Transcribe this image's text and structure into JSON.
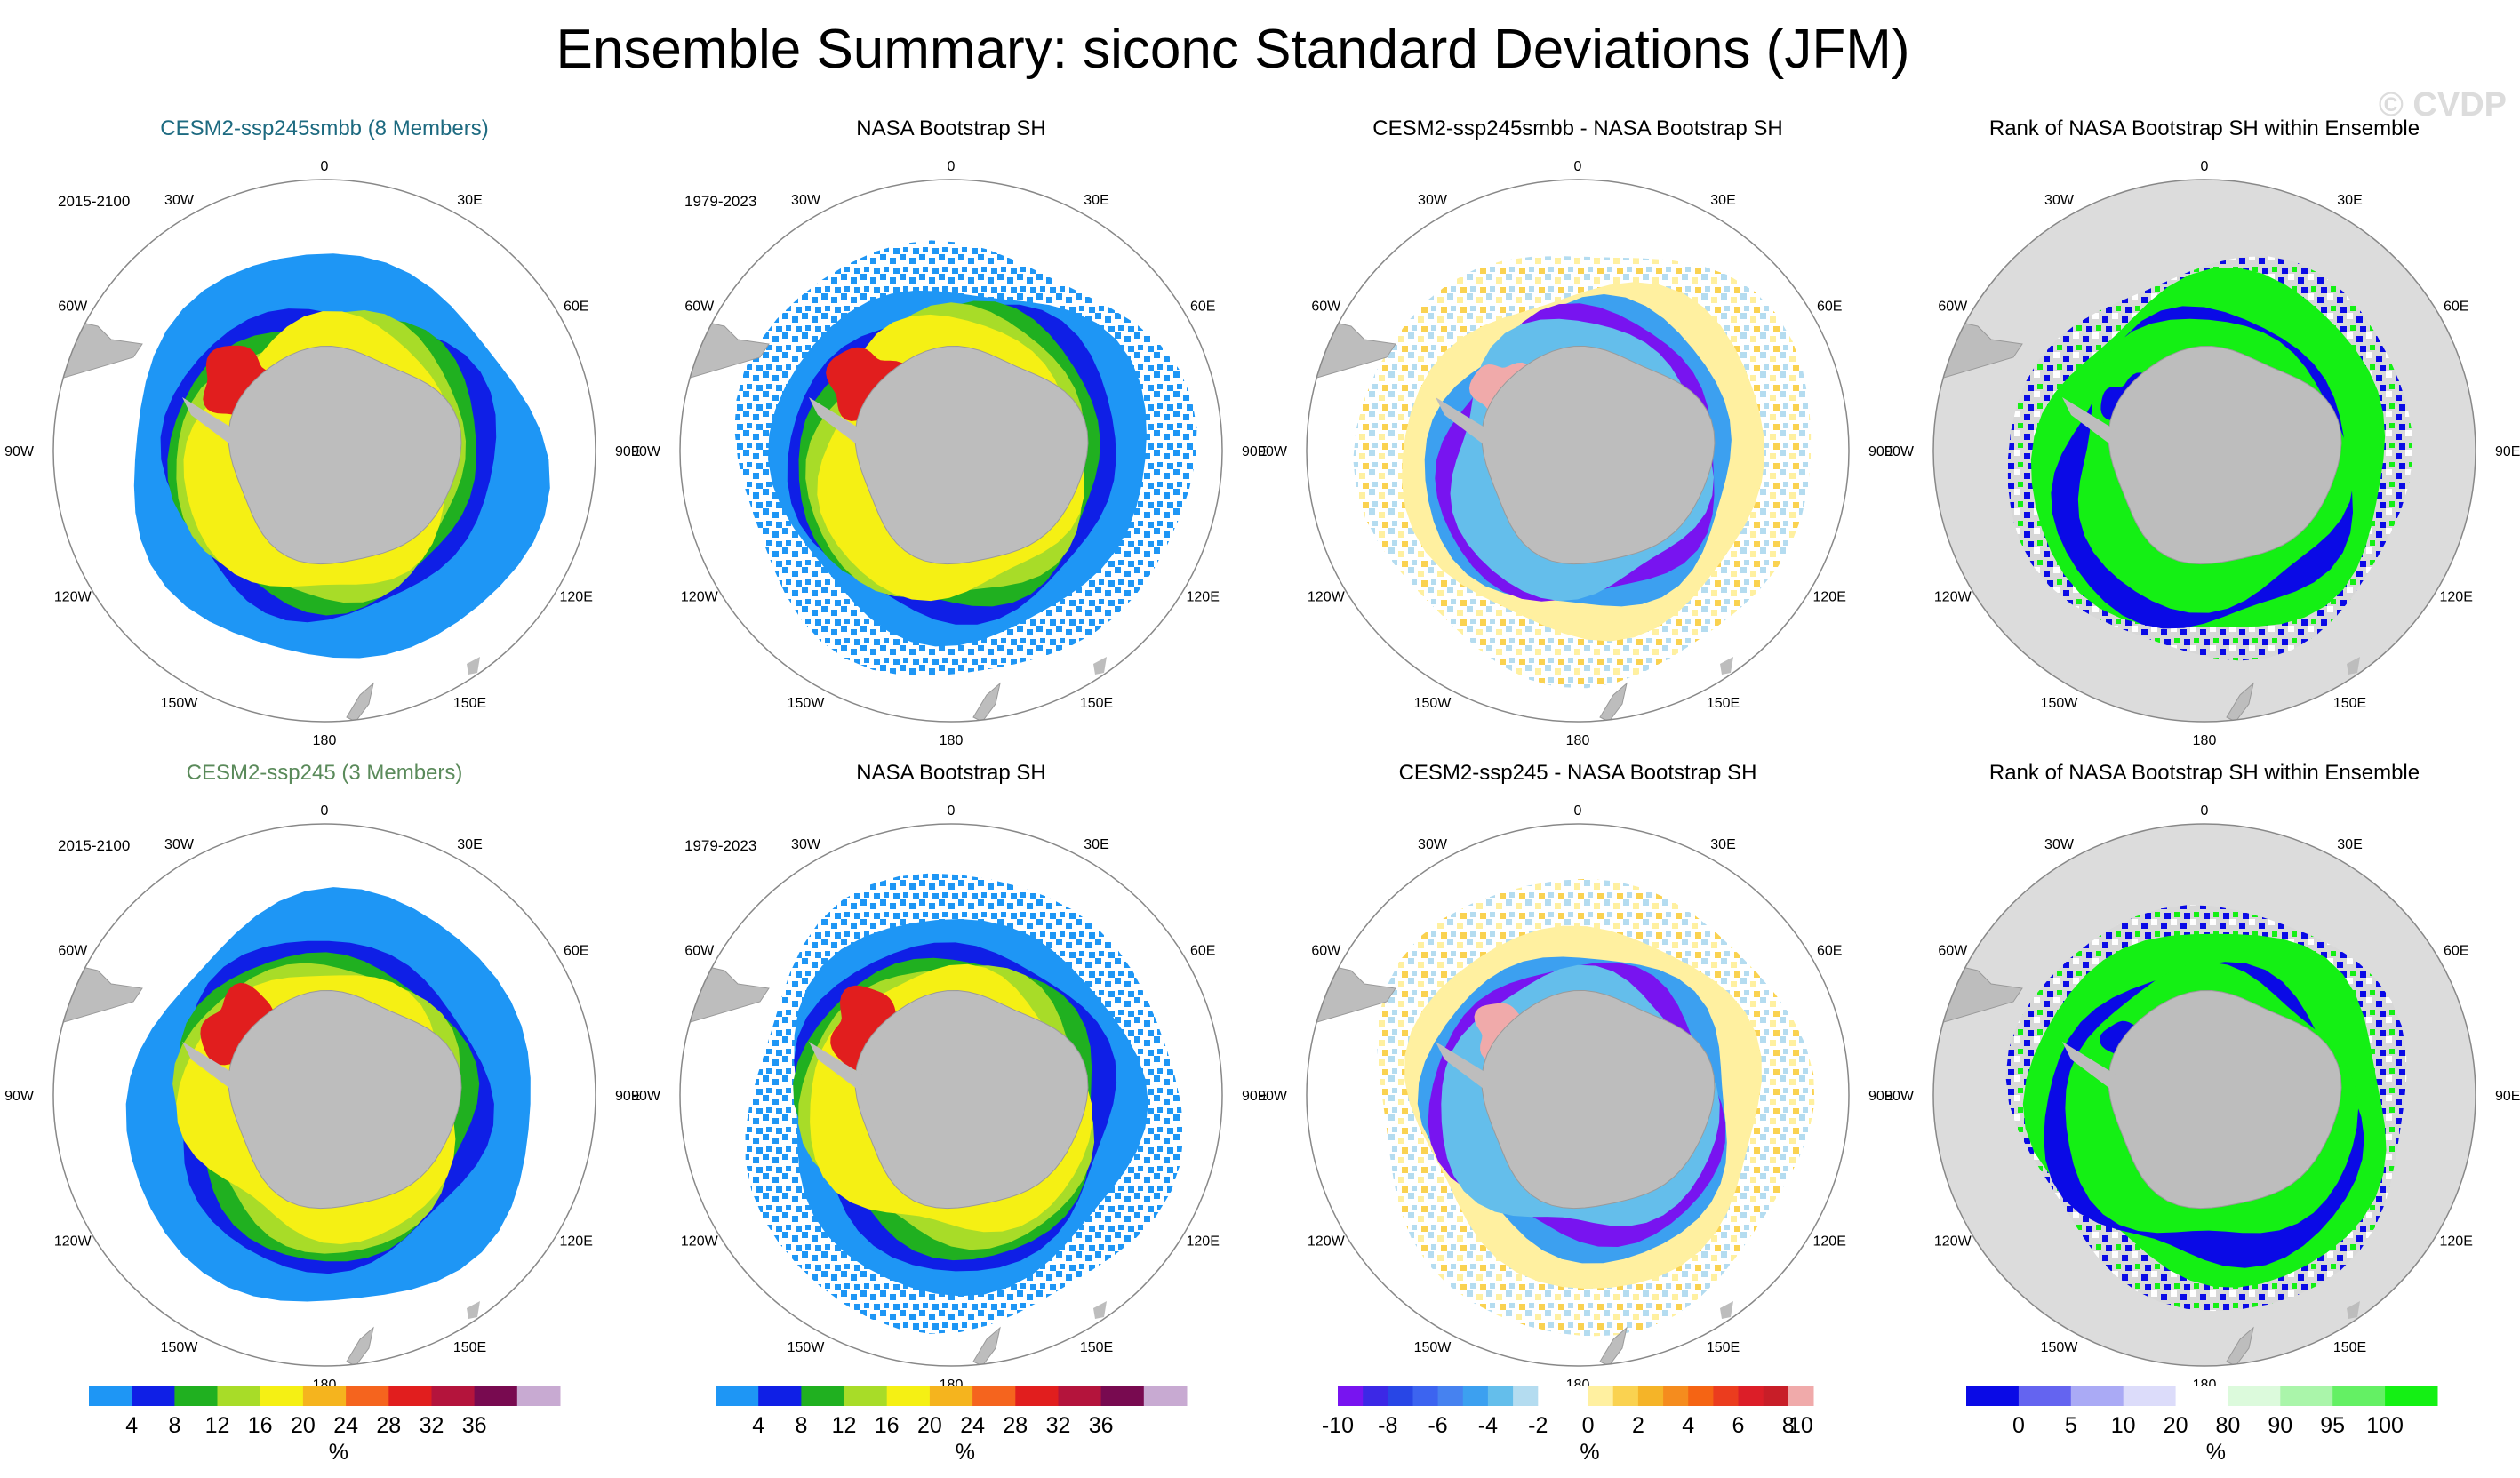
{
  "title": "Ensemble Summary: siconc Standard Deviations (JFM)",
  "watermark": "© CVDP",
  "lon_labels": [
    "0",
    "30E",
    "60E",
    "90E",
    "120E",
    "150E",
    "180",
    "150W",
    "120W",
    "90W",
    "60W",
    "30W"
  ],
  "panels": [
    {
      "title": "CESM2-ssp245smbb (8 Members)",
      "title_color": "#1d6a80",
      "period": "2015-2100",
      "kind": "std",
      "variant": "model"
    },
    {
      "title": "NASA Bootstrap SH",
      "title_color": "#000000",
      "period": "1979-2023",
      "kind": "std",
      "variant": "obs"
    },
    {
      "title": "CESM2-ssp245smbb - NASA Bootstrap SH",
      "title_color": "#000000",
      "period": "",
      "kind": "diff",
      "variant": "diff"
    },
    {
      "title": "Rank of NASA Bootstrap SH within Ensemble",
      "title_color": "#000000",
      "period": "",
      "kind": "rank",
      "variant": "rank"
    },
    {
      "title": "CESM2-ssp245 (3 Members)",
      "title_color": "#5a8a5a",
      "period": "2015-2100",
      "kind": "std",
      "variant": "model"
    },
    {
      "title": "NASA Bootstrap SH",
      "title_color": "#000000",
      "period": "1979-2023",
      "kind": "std",
      "variant": "obs"
    },
    {
      "title": "CESM2-ssp245 - NASA Bootstrap SH",
      "title_color": "#000000",
      "period": "",
      "kind": "diff",
      "variant": "diff"
    },
    {
      "title": "Rank of NASA Bootstrap SH within Ensemble",
      "title_color": "#000000",
      "period": "",
      "kind": "rank",
      "variant": "rank"
    }
  ],
  "chart_data": [
    {
      "type": "heatmap",
      "name": "std-colorbar",
      "units": "%",
      "ticks": [
        "4",
        "8",
        "12",
        "16",
        "20",
        "24",
        "28",
        "32",
        "36"
      ],
      "colors": [
        "#1e96f5",
        "#0f1fe6",
        "#20b020",
        "#a8dc28",
        "#f5f014",
        "#f5b41e",
        "#f5641e",
        "#e11e1e",
        "#b4143c",
        "#780a50",
        "#c8aad2"
      ]
    },
    {
      "type": "heatmap",
      "name": "diff-colorbar",
      "units": "%",
      "ticks": [
        "-10",
        "-8",
        "-6",
        "-4",
        "-2",
        "0",
        "2",
        "4",
        "6",
        "8",
        "10"
      ],
      "colors": [
        "#7814f0",
        "#3c28e6",
        "#2846e6",
        "#3c64f0",
        "#4682f0",
        "#3ca0f0",
        "#64beeb",
        "#b4dcf0",
        "#ffffff",
        "#ffffff",
        "#fff0a0",
        "#fad250",
        "#f5b428",
        "#f58c1e",
        "#f56414",
        "#eb3c1e",
        "#dc1e28",
        "#c81e28",
        "#f0aaaa"
      ]
    },
    {
      "type": "heatmap",
      "name": "rank-colorbar",
      "units": "%",
      "ticks": [
        "0",
        "5",
        "10",
        "20",
        "80",
        "90",
        "95",
        "100"
      ],
      "colors": [
        "#0a0ae6",
        "#6464f0",
        "#aaaaf5",
        "#dcdcfa",
        "#ffffff",
        "#dcfadc",
        "#aaf5aa",
        "#64f064",
        "#14f014"
      ]
    }
  ]
}
